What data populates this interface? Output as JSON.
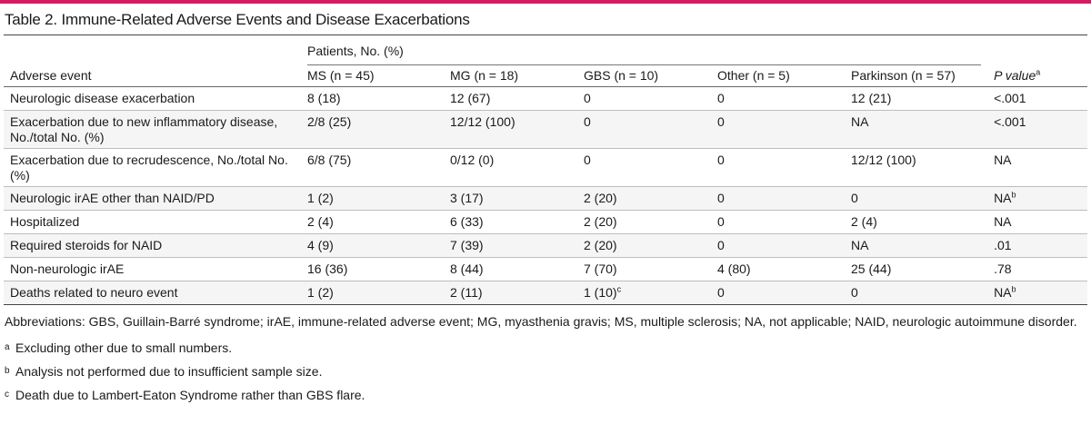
{
  "title": "Table 2. Immune-Related Adverse Events and Disease Exacerbations",
  "colors": {
    "accent": "#d81b60",
    "row_alt": "#f5f5f5"
  },
  "header": {
    "first_col": "Adverse event",
    "group_label": "Patients, No. (%)",
    "columns": [
      "MS (n = 45)",
      "MG (n = 18)",
      "GBS (n = 10)",
      "Other (n = 5)",
      "Parkinson (n = 57)"
    ],
    "pvalue_label": "P value",
    "pvalue_sup": "a"
  },
  "rows": [
    {
      "event": "Neurologic disease exacerbation",
      "cells": [
        "8 (18)",
        "12 (67)",
        "0",
        "0",
        "12 (21)"
      ],
      "p": "<.001",
      "p_sup": "",
      "sups": [
        "",
        "",
        "",
        "",
        ""
      ]
    },
    {
      "event": "Exacerbation due to new inflammatory disease, No./total No. (%)",
      "cells": [
        "2/8 (25)",
        "12/12 (100)",
        "0",
        "0",
        "NA"
      ],
      "p": "<.001",
      "p_sup": "",
      "sups": [
        "",
        "",
        "",
        "",
        ""
      ]
    },
    {
      "event": "Exacerbation due to recrudescence, No./total No. (%)",
      "cells": [
        "6/8 (75)",
        "0/12 (0)",
        "0",
        "0",
        "12/12 (100)"
      ],
      "p": "NA",
      "p_sup": "",
      "sups": [
        "",
        "",
        "",
        "",
        ""
      ]
    },
    {
      "event": "Neurologic irAE other than NAID/PD",
      "cells": [
        "1 (2)",
        "3 (17)",
        "2 (20)",
        "0",
        "0"
      ],
      "p": "NA",
      "p_sup": "b",
      "sups": [
        "",
        "",
        "",
        "",
        ""
      ]
    },
    {
      "event": "Hospitalized",
      "cells": [
        "2 (4)",
        "6 (33)",
        "2 (20)",
        "0",
        "2 (4)"
      ],
      "p": "NA",
      "p_sup": "",
      "sups": [
        "",
        "",
        "",
        "",
        ""
      ]
    },
    {
      "event": "Required steroids for NAID",
      "cells": [
        "4 (9)",
        "7 (39)",
        "2 (20)",
        "0",
        "NA"
      ],
      "p": ".01",
      "p_sup": "",
      "sups": [
        "",
        "",
        "",
        "",
        ""
      ]
    },
    {
      "event": "Non-neurologic irAE",
      "cells": [
        "16 (36)",
        "8 (44)",
        "7 (70)",
        "4 (80)",
        "25 (44)"
      ],
      "p": ".78",
      "p_sup": "",
      "sups": [
        "",
        "",
        "",
        "",
        ""
      ]
    },
    {
      "event": "Deaths related to neuro event",
      "cells": [
        "1 (2)",
        "2 (11)",
        "1 (10)",
        "0",
        "0"
      ],
      "p": "NA",
      "p_sup": "b",
      "sups": [
        "",
        "",
        "c",
        "",
        ""
      ]
    }
  ],
  "footnotes": {
    "abbreviations": "Abbreviations: GBS, Guillain-Barré syndrome; irAE, immune-related adverse event; MG, myasthenia gravis; MS, multiple sclerosis; NA, not applicable; NAID, neurologic autoimmune disorder.",
    "notes": [
      {
        "mark": "a",
        "text": "Excluding other due to small numbers."
      },
      {
        "mark": "b",
        "text": "Analysis not performed due to insufficient sample size."
      },
      {
        "mark": "c",
        "text": "Death due to Lambert-Eaton Syndrome rather than GBS flare."
      }
    ]
  }
}
